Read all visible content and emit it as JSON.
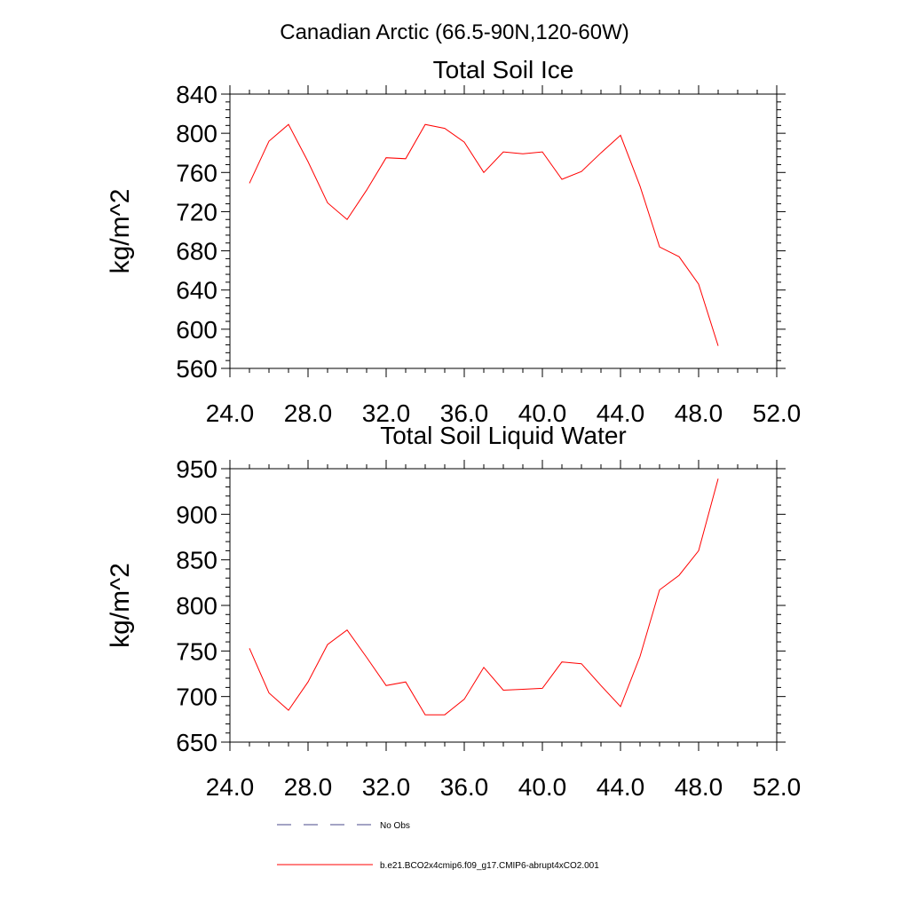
{
  "figure": {
    "title": "Canadian Arctic (66.5-90N,120-60W)"
  },
  "chart_data": [
    {
      "type": "line",
      "title": "Total Soil Ice",
      "xlabel": "",
      "ylabel": "kg/m^2",
      "xlim": [
        24,
        52
      ],
      "ylim": [
        560,
        840
      ],
      "xticks": [
        24,
        28,
        32,
        36,
        40,
        44,
        48,
        52
      ],
      "xtick_labels": [
        "24.0",
        "28.0",
        "32.0",
        "36.0",
        "40.0",
        "44.0",
        "48.0",
        "52.0"
      ],
      "yticks": [
        560,
        600,
        640,
        680,
        720,
        760,
        800,
        840
      ],
      "ytick_labels": [
        "560",
        "600",
        "640",
        "680",
        "720",
        "760",
        "800",
        "840"
      ],
      "series": [
        {
          "name": "b.e21.BCO2x4cmip6.f09_g17.CMIP6-abrupt4xCO2.001",
          "color": "#ff0000",
          "x": [
            25,
            26,
            27,
            28,
            29,
            30,
            31,
            32,
            33,
            34,
            35,
            36,
            37,
            38,
            39,
            40,
            41,
            42,
            43,
            44,
            45,
            46,
            47,
            48,
            49
          ],
          "values": [
            749,
            792,
            809,
            771,
            729,
            712,
            742,
            775,
            774,
            809,
            805,
            791,
            760,
            781,
            779,
            781,
            753,
            761,
            780,
            798,
            746,
            684,
            674,
            646,
            583
          ]
        }
      ]
    },
    {
      "type": "line",
      "title": "Total Soil Liquid Water",
      "xlabel": "",
      "ylabel": "kg/m^2",
      "xlim": [
        24,
        52
      ],
      "ylim": [
        650,
        950
      ],
      "xticks": [
        24,
        28,
        32,
        36,
        40,
        44,
        48,
        52
      ],
      "xtick_labels": [
        "24.0",
        "28.0",
        "32.0",
        "36.0",
        "40.0",
        "44.0",
        "48.0",
        "52.0"
      ],
      "yticks": [
        650,
        700,
        750,
        800,
        850,
        900,
        950
      ],
      "ytick_labels": [
        "650",
        "700",
        "750",
        "800",
        "850",
        "900",
        "950"
      ],
      "series": [
        {
          "name": "b.e21.BCO2x4cmip6.f09_g17.CMIP6-abrupt4xCO2.001",
          "color": "#ff0000",
          "x": [
            25,
            26,
            27,
            28,
            29,
            30,
            31,
            32,
            33,
            34,
            35,
            36,
            37,
            38,
            39,
            40,
            41,
            42,
            43,
            44,
            45,
            46,
            47,
            48,
            49
          ],
          "values": [
            753,
            704,
            685,
            716,
            757,
            773,
            743,
            712,
            716,
            680,
            680,
            697,
            732,
            707,
            708,
            709,
            738,
            736,
            712,
            689,
            744,
            817,
            833,
            860,
            939
          ]
        }
      ]
    }
  ],
  "legend": [
    {
      "label": "No Obs",
      "color": "#4a4a8a",
      "style": "dashed"
    },
    {
      "label": "b.e21.BCO2x4cmip6.f09_g17.CMIP6-abrupt4xCO2.001",
      "color": "#ff0000",
      "style": "solid"
    }
  ]
}
